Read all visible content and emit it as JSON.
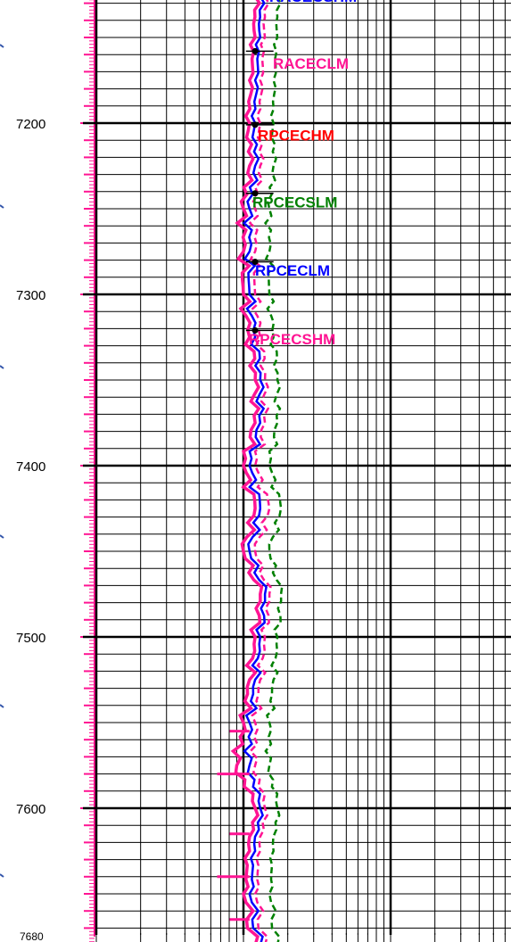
{
  "chart_data": {
    "type": "line",
    "title": "",
    "xlabel": "",
    "ylabel": "",
    "x_scale": "log",
    "y_axis": "depth (increasing downward)",
    "ylim": [
      7126,
      7680
    ],
    "depth_ticks": [
      7200,
      7300,
      7400,
      7500,
      7600
    ],
    "depth_end_label": "7680",
    "grid": true,
    "legend": "curve names written inside the track",
    "colors": {
      "RACECSHM": "#0000ff",
      "RACECLM": "#ff1493",
      "RPCECHM": "#ff0000",
      "RPCECSLM": "#008000",
      "RPCECLM": "#0000ff",
      "RPCECSHM": "#ff1493"
    },
    "curve_labels": [
      {
        "text": "RACECSHM",
        "color": "#0000ff",
        "depth": 7126
      },
      {
        "text": "RACECLM",
        "color": "#ff1493",
        "depth": 7165
      },
      {
        "text": "RPCECHM",
        "color": "#ff0000",
        "depth": 7207
      },
      {
        "text": "RPCECSLM",
        "color": "#008000",
        "depth": 7246
      },
      {
        "text": "RPCECLM",
        "color": "#0000ff",
        "depth": 7286
      },
      {
        "text": "RPCECSHM",
        "color": "#ff1493",
        "depth": 7326
      }
    ],
    "marker_depths": [
      7158,
      7201,
      7241,
      7281,
      7321
    ],
    "series": [
      {
        "name": "RPCECSLM",
        "color": "#008000",
        "dash": true,
        "depth": [
          7126,
          7150,
          7175,
          7200,
          7225,
          7250,
          7275,
          7300,
          7325,
          7350,
          7375,
          7400,
          7425,
          7450,
          7475,
          7500,
          7525,
          7550,
          7575,
          7600,
          7625,
          7650,
          7680
        ],
        "values": [
          17,
          17,
          16,
          16,
          16,
          15,
          15,
          15,
          16,
          17,
          17,
          15,
          18,
          15,
          18,
          17,
          16,
          15,
          15,
          17,
          16,
          15,
          17
        ]
      },
      {
        "name": "RPCECSHM",
        "color": "#ff1493",
        "dash": true,
        "depth": [
          7126,
          7150,
          7175,
          7200,
          7225,
          7250,
          7275,
          7300,
          7325,
          7350,
          7375,
          7400,
          7425,
          7450,
          7475,
          7500,
          7525,
          7550,
          7575,
          7600,
          7625,
          7650,
          7680
        ],
        "values": [
          14,
          14,
          13,
          13,
          13,
          12,
          12,
          12,
          13,
          14,
          14,
          12,
          15,
          12,
          15,
          14,
          13,
          12,
          12,
          14,
          13,
          12,
          14
        ]
      },
      {
        "name": "RPCECLM",
        "color": "#0000ff",
        "dash": false,
        "depth": [
          7126,
          7150,
          7175,
          7200,
          7225,
          7250,
          7275,
          7300,
          7325,
          7350,
          7375,
          7400,
          7425,
          7450,
          7475,
          7500,
          7525,
          7550,
          7575,
          7600,
          7625,
          7650,
          7680
        ],
        "values": [
          13,
          13,
          12,
          12,
          12,
          11,
          11,
          11,
          12,
          13,
          13,
          11,
          13,
          11,
          14,
          13,
          12,
          11,
          11,
          13,
          12,
          11,
          13
        ]
      },
      {
        "name": "RACECLM",
        "color": "#ff1493",
        "dash": false,
        "depth": [
          7126,
          7150,
          7175,
          7200,
          7225,
          7250,
          7275,
          7300,
          7325,
          7350,
          7375,
          7400,
          7425,
          7450,
          7475,
          7500,
          7525,
          7550,
          7575,
          7600,
          7625,
          7650,
          7680
        ],
        "values": [
          12,
          12,
          11,
          11,
          11,
          10,
          10,
          10,
          11,
          12,
          12,
          10,
          12,
          10,
          13,
          12,
          11,
          10,
          9,
          12,
          11,
          10,
          12
        ]
      }
    ]
  }
}
